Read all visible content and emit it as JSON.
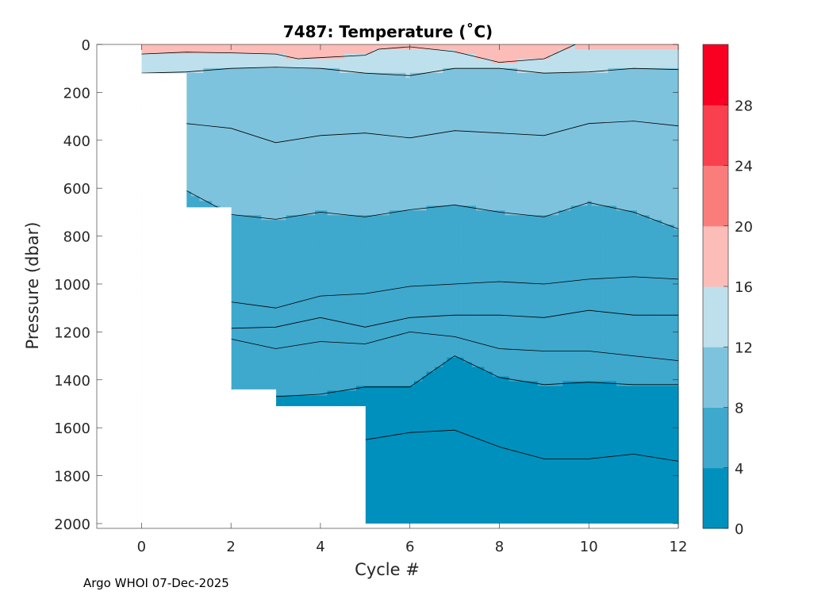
{
  "chart_data": {
    "type": "contour",
    "title": "7487:  Temperature (˚C)",
    "xlabel": "Cycle #",
    "ylabel": "Pressure (dbar)",
    "xlim": [
      -1,
      12
    ],
    "ylim": [
      0,
      2020
    ],
    "x_ticks": [
      0,
      2,
      4,
      6,
      8,
      10,
      12
    ],
    "y_ticks": [
      0,
      200,
      400,
      600,
      800,
      1000,
      1200,
      1400,
      1600,
      1800,
      2000
    ],
    "y_reversed": true,
    "colorbar": {
      "range": [
        0,
        32
      ],
      "ticks": [
        0,
        4,
        8,
        12,
        16,
        20,
        24,
        28
      ],
      "levels": [
        {
          "min": 0,
          "max": 4,
          "color": "#0090bd"
        },
        {
          "min": 4,
          "max": 8,
          "color": "#3fa8cd"
        },
        {
          "min": 8,
          "max": 12,
          "color": "#7ec3dd"
        },
        {
          "min": 12,
          "max": 16,
          "color": "#bde0ec"
        },
        {
          "min": 16,
          "max": 20,
          "color": "#fcbcb8"
        },
        {
          "min": 20,
          "max": 24,
          "color": "#fa7d7c"
        },
        {
          "min": 24,
          "max": 28,
          "color": "#f9404f"
        },
        {
          "min": 28,
          "max": 32,
          "color": "#f90023"
        }
      ]
    },
    "coverage": [
      {
        "from_cycle": 0,
        "to_cycle": 1,
        "max_pressure": 120
      },
      {
        "from_cycle": 1,
        "to_cycle": 2,
        "max_pressure": 680
      },
      {
        "from_cycle": 2,
        "to_cycle": 3,
        "max_pressure": 1440
      },
      {
        "from_cycle": 3,
        "to_cycle": 4,
        "max_pressure": 1510
      },
      {
        "from_cycle": 4,
        "to_cycle": 5,
        "max_pressure": 1510
      },
      {
        "from_cycle": 5,
        "to_cycle": 12,
        "max_pressure": 2000
      }
    ],
    "isotherms": [
      {
        "level": 16,
        "x": [
          0,
          1,
          2,
          3,
          3.5,
          5,
          5.3,
          6,
          7,
          8,
          9,
          9.7
        ],
        "p": [
          40,
          32,
          35,
          40,
          60,
          45,
          20,
          10,
          30,
          75,
          60,
          0
        ]
      },
      {
        "level": 12,
        "x": [
          0,
          1,
          2,
          3,
          4,
          5,
          6,
          7,
          8,
          9,
          10,
          11,
          12
        ],
        "p": [
          120,
          115,
          100,
          95,
          100,
          120,
          130,
          100,
          100,
          120,
          115,
          100,
          105
        ]
      },
      {
        "level": 10,
        "x": [
          1,
          2,
          3,
          4,
          5,
          6,
          7,
          8,
          9,
          10,
          11,
          12
        ],
        "p": [
          330,
          350,
          410,
          380,
          370,
          390,
          360,
          370,
          380,
          330,
          320,
          340
        ]
      },
      {
        "level": 8,
        "x": [
          1,
          2,
          3,
          4,
          5,
          6,
          7,
          8,
          9,
          10,
          11,
          12
        ],
        "p": [
          610,
          710,
          730,
          700,
          720,
          690,
          670,
          700,
          720,
          660,
          700,
          770
        ]
      },
      {
        "level": 6,
        "x": [
          2,
          3,
          4,
          5,
          6,
          7,
          8,
          9,
          10,
          11,
          12
        ],
        "p": [
          1075,
          1100,
          1050,
          1040,
          1010,
          1000,
          990,
          1000,
          980,
          970,
          980
        ]
      },
      {
        "level": 5,
        "x": [
          2,
          3,
          4,
          5,
          6,
          7,
          8,
          9,
          10,
          11,
          12
        ],
        "p": [
          1185,
          1180,
          1140,
          1180,
          1140,
          1130,
          1130,
          1140,
          1110,
          1130,
          1130
        ]
      },
      {
        "level": 4.5,
        "x": [
          2,
          3,
          4,
          5,
          6,
          7,
          8,
          9,
          10,
          11,
          12
        ],
        "p": [
          1230,
          1270,
          1240,
          1250,
          1200,
          1220,
          1270,
          1280,
          1280,
          1300,
          1320
        ]
      },
      {
        "level": 4,
        "x": [
          2,
          3,
          4,
          5,
          6,
          7,
          8,
          9,
          10,
          11,
          12
        ],
        "p": [
          1440,
          1470,
          1460,
          1430,
          1430,
          1300,
          1390,
          1420,
          1410,
          1420,
          1420
        ]
      },
      {
        "level": 3,
        "x": [
          5,
          6,
          7,
          8,
          9,
          10,
          11,
          12
        ],
        "p": [
          1650,
          1620,
          1610,
          1680,
          1730,
          1730,
          1710,
          1740
        ]
      }
    ]
  },
  "footer": {
    "text": "Argo WHOI 07-Dec-2025"
  }
}
